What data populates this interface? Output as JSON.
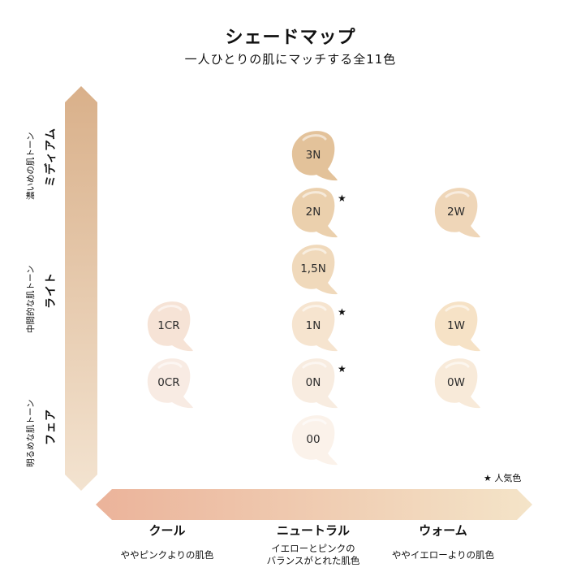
{
  "title": "シェードマップ",
  "subtitle": "一人ひとりの肌にマッチする全11色",
  "legend": "★ 人気色",
  "y_axis": [
    {
      "name": "ミディアム",
      "desc": "濃いめの肌トーン"
    },
    {
      "name": "ライト",
      "desc": "中間的な肌トーン"
    },
    {
      "name": "フェア",
      "desc": "明るめな肌トーン"
    }
  ],
  "x_axis": [
    {
      "name": "クール",
      "desc": "ややピンクよりの肌色"
    },
    {
      "name": "ニュートラル",
      "desc": "イエローとピンクの\nバランスがとれた肌色"
    },
    {
      "name": "ウォーム",
      "desc": "ややイエローよりの肌色"
    }
  ],
  "colors": {
    "axis_gradient_top": "#d9b08a",
    "axis_gradient_bottom": "#f3e3d0",
    "x_axis_left": "#ebb39a",
    "x_axis_right": "#f4e4c8"
  },
  "chart_data": {
    "type": "scatter",
    "xlabel": "",
    "ylabel": "",
    "x_categories": [
      "クール",
      "ニュートラル",
      "ウォーム"
    ],
    "y_categories": [
      "フェア",
      "ライト",
      "ミディアム"
    ],
    "points": [
      {
        "label": "3N",
        "x": "ニュートラル",
        "y": 4,
        "color": "#e3c29a",
        "popular": false
      },
      {
        "label": "2N",
        "x": "ニュートラル",
        "y": 3,
        "color": "#ebd0ad",
        "popular": true
      },
      {
        "label": "2W",
        "x": "ウォーム",
        "y": 3,
        "color": "#efd6b8",
        "popular": false
      },
      {
        "label": "1,5N",
        "x": "ニュートラル",
        "y": 2,
        "color": "#f0d9bb",
        "popular": false
      },
      {
        "label": "1CR",
        "x": "クール",
        "y": 1,
        "color": "#f6e3d6",
        "popular": false
      },
      {
        "label": "1N",
        "x": "ニュートラル",
        "y": 1,
        "color": "#f6e4cf",
        "popular": true
      },
      {
        "label": "1W",
        "x": "ウォーム",
        "y": 1,
        "color": "#f6e2c6",
        "popular": false
      },
      {
        "label": "0CR",
        "x": "クール",
        "y": 0,
        "color": "#f8ebe3",
        "popular": false
      },
      {
        "label": "0N",
        "x": "ニュートラル",
        "y": 0,
        "color": "#f8ece0",
        "popular": true
      },
      {
        "label": "0W",
        "x": "ウォーム",
        "y": 0,
        "color": "#f8ead9",
        "popular": false
      },
      {
        "label": "00",
        "x": "ニュートラル",
        "y": -1,
        "color": "#fbf2ea",
        "popular": false
      }
    ]
  }
}
